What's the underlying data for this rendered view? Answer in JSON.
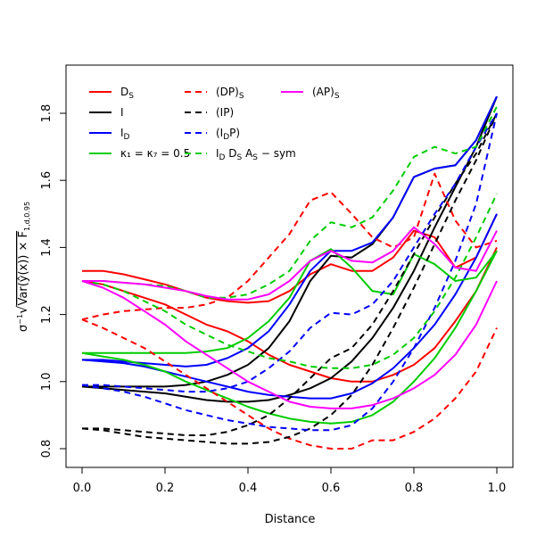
{
  "chart_data": {
    "type": "line",
    "xlabel": "Distance",
    "ylabel": "σ⁻¹√(Var(ŷ(x)) × F₁,d,0.95)",
    "xlim": [
      0.0,
      1.0
    ],
    "ylim": [
      0.8,
      1.85
    ],
    "xticks": [
      0.0,
      0.2,
      0.4,
      0.6,
      0.8,
      1.0
    ],
    "xtick_labels": [
      "0.0",
      "0.2",
      "0.4",
      "0.6",
      "0.8",
      "1.0"
    ],
    "yticks": [
      0.8,
      1.0,
      1.2,
      1.4,
      1.6,
      1.8
    ],
    "ytick_labels": [
      "0.8",
      "1.0",
      "1.2",
      "1.4",
      "1.6",
      "1.8"
    ],
    "grid": false,
    "legend_position": "top-left",
    "series": [
      {
        "legend": "D_S",
        "color": "#ff0000",
        "dash": "solid",
        "curves": [
          {
            "x": [
              0,
              0.05,
              0.1,
              0.15,
              0.2,
              0.25,
              0.3,
              0.35,
              0.4,
              0.45,
              0.5,
              0.55,
              0.6,
              0.65,
              0.7,
              0.75,
              0.8,
              0.85,
              0.9,
              0.95,
              1.0
            ],
            "y": [
              1.33,
              1.33,
              1.32,
              1.305,
              1.29,
              1.27,
              1.25,
              1.24,
              1.235,
              1.24,
              1.27,
              1.32,
              1.35,
              1.33,
              1.33,
              1.37,
              1.45,
              1.43,
              1.34,
              1.37,
              1.5
            ]
          },
          {
            "x": [
              0,
              0.05,
              0.1,
              0.15,
              0.2,
              0.25,
              0.3,
              0.35,
              0.4,
              0.45,
              0.5,
              0.55,
              0.6,
              0.65,
              0.7,
              0.75,
              0.8,
              0.85,
              0.9,
              0.95,
              1.0
            ],
            "y": [
              1.3,
              1.29,
              1.27,
              1.25,
              1.23,
              1.2,
              1.17,
              1.15,
              1.12,
              1.08,
              1.05,
              1.03,
              1.01,
              1.0,
              1.0,
              1.02,
              1.05,
              1.1,
              1.18,
              1.27,
              1.4
            ]
          }
        ]
      },
      {
        "legend": "I",
        "color": "#000000",
        "dash": "solid",
        "curves": [
          {
            "x": [
              0,
              0.05,
              0.1,
              0.15,
              0.2,
              0.25,
              0.3,
              0.35,
              0.4,
              0.45,
              0.5,
              0.55,
              0.6,
              0.65,
              0.7,
              0.75,
              0.8,
              0.85,
              0.9,
              0.95,
              1.0
            ],
            "y": [
              0.985,
              0.985,
              0.985,
              0.985,
              0.985,
              0.99,
              1.0,
              1.02,
              1.05,
              1.1,
              1.18,
              1.3,
              1.375,
              1.37,
              1.41,
              1.49,
              1.61,
              1.635,
              1.645,
              1.72,
              1.85
            ]
          },
          {
            "x": [
              0,
              0.05,
              0.1,
              0.15,
              0.2,
              0.25,
              0.3,
              0.35,
              0.4,
              0.45,
              0.5,
              0.55,
              0.6,
              0.65,
              0.7,
              0.75,
              0.8,
              0.85,
              0.9,
              0.95,
              1.0
            ],
            "y": [
              0.985,
              0.98,
              0.975,
              0.97,
              0.965,
              0.955,
              0.945,
              0.94,
              0.94,
              0.945,
              0.96,
              0.98,
              1.01,
              1.06,
              1.13,
              1.22,
              1.33,
              1.46,
              1.58,
              1.7,
              1.85
            ]
          }
        ]
      },
      {
        "legend": "I_D",
        "color": "#0000ff",
        "dash": "solid",
        "curves": [
          {
            "x": [
              0,
              0.05,
              0.1,
              0.15,
              0.2,
              0.25,
              0.3,
              0.35,
              0.4,
              0.45,
              0.5,
              0.55,
              0.6,
              0.65,
              0.7,
              0.75,
              0.8,
              0.85,
              0.9,
              0.95,
              1.0
            ],
            "y": [
              1.065,
              1.065,
              1.06,
              1.055,
              1.05,
              1.045,
              1.05,
              1.07,
              1.1,
              1.15,
              1.23,
              1.33,
              1.39,
              1.39,
              1.415,
              1.49,
              1.61,
              1.635,
              1.645,
              1.72,
              1.85
            ]
          },
          {
            "x": [
              0,
              0.05,
              0.1,
              0.15,
              0.2,
              0.25,
              0.3,
              0.35,
              0.4,
              0.45,
              0.5,
              0.55,
              0.6,
              0.65,
              0.7,
              0.75,
              0.8,
              0.85,
              0.9,
              0.95,
              1.0
            ],
            "y": [
              1.065,
              1.06,
              1.055,
              1.045,
              1.03,
              1.015,
              1.0,
              0.985,
              0.97,
              0.96,
              0.955,
              0.95,
              0.95,
              0.965,
              0.995,
              1.04,
              1.1,
              1.17,
              1.26,
              1.37,
              1.5
            ]
          }
        ]
      },
      {
        "legend": "κ₁ = κ₇ = 0.5",
        "color": "#00cc00",
        "dash": "solid",
        "curves": [
          {
            "x": [
              0,
              0.05,
              0.1,
              0.15,
              0.2,
              0.25,
              0.3,
              0.35,
              0.4,
              0.45,
              0.5,
              0.55,
              0.6,
              0.65,
              0.7,
              0.75,
              0.8,
              0.85,
              0.9,
              0.95,
              1.0
            ],
            "y": [
              1.085,
              1.085,
              1.085,
              1.085,
              1.085,
              1.085,
              1.09,
              1.1,
              1.13,
              1.18,
              1.25,
              1.36,
              1.395,
              1.34,
              1.27,
              1.26,
              1.38,
              1.35,
              1.3,
              1.31,
              1.39
            ]
          },
          {
            "x": [
              0,
              0.05,
              0.1,
              0.15,
              0.2,
              0.25,
              0.3,
              0.35,
              0.4,
              0.45,
              0.5,
              0.55,
              0.6,
              0.65,
              0.7,
              0.75,
              0.8,
              0.85,
              0.9,
              0.95,
              1.0
            ],
            "y": [
              1.085,
              1.075,
              1.065,
              1.05,
              1.03,
              1.0,
              0.975,
              0.95,
              0.925,
              0.905,
              0.89,
              0.88,
              0.875,
              0.88,
              0.9,
              0.94,
              1.0,
              1.07,
              1.16,
              1.27,
              1.39
            ]
          }
        ]
      },
      {
        "legend": "(DP)_S",
        "color": "#ff0000",
        "dash": "dashed",
        "curves": [
          {
            "x": [
              0,
              0.05,
              0.1,
              0.15,
              0.2,
              0.25,
              0.3,
              0.35,
              0.4,
              0.45,
              0.5,
              0.55,
              0.6,
              0.65,
              0.7,
              0.75,
              0.8,
              0.85,
              0.9,
              0.95,
              1.0
            ],
            "y": [
              1.185,
              1.2,
              1.21,
              1.215,
              1.22,
              1.22,
              1.23,
              1.25,
              1.3,
              1.37,
              1.44,
              1.54,
              1.565,
              1.5,
              1.43,
              1.4,
              1.43,
              1.62,
              1.48,
              1.4,
              1.42
            ]
          },
          {
            "x": [
              0,
              0.05,
              0.1,
              0.15,
              0.2,
              0.25,
              0.3,
              0.35,
              0.4,
              0.45,
              0.5,
              0.55,
              0.6,
              0.65,
              0.7,
              0.75,
              0.8,
              0.85,
              0.9,
              0.95,
              1.0
            ],
            "y": [
              1.185,
              1.16,
              1.13,
              1.1,
              1.06,
              1.02,
              0.98,
              0.94,
              0.9,
              0.86,
              0.83,
              0.81,
              0.8,
              0.8,
              0.825,
              0.825,
              0.85,
              0.89,
              0.95,
              1.03,
              1.16
            ]
          }
        ]
      },
      {
        "legend": "(IP)",
        "color": "#000000",
        "dash": "dashed",
        "curves": [
          {
            "x": [
              0,
              0.05,
              0.1,
              0.15,
              0.2,
              0.25,
              0.3,
              0.35,
              0.4,
              0.45,
              0.5,
              0.55,
              0.6,
              0.65,
              0.7,
              0.75,
              0.8,
              0.85,
              0.9,
              0.95,
              1.0
            ],
            "y": [
              0.86,
              0.86,
              0.855,
              0.85,
              0.845,
              0.84,
              0.84,
              0.85,
              0.87,
              0.9,
              0.95,
              1.01,
              1.07,
              1.1,
              1.17,
              1.27,
              1.38,
              1.49,
              1.59,
              1.68,
              1.8
            ]
          },
          {
            "x": [
              0,
              0.05,
              0.1,
              0.15,
              0.2,
              0.25,
              0.3,
              0.35,
              0.4,
              0.45,
              0.5,
              0.55,
              0.6,
              0.65,
              0.7,
              0.75,
              0.8,
              0.85,
              0.9,
              0.95,
              1.0
            ],
            "y": [
              0.86,
              0.855,
              0.845,
              0.835,
              0.83,
              0.825,
              0.82,
              0.815,
              0.815,
              0.82,
              0.835,
              0.86,
              0.9,
              0.96,
              1.05,
              1.16,
              1.28,
              1.41,
              1.54,
              1.66,
              1.8
            ]
          }
        ]
      },
      {
        "legend": "(I_D P)",
        "color": "#0000ff",
        "dash": "dashed",
        "curves": [
          {
            "x": [
              0,
              0.05,
              0.1,
              0.15,
              0.2,
              0.25,
              0.3,
              0.35,
              0.4,
              0.45,
              0.5,
              0.55,
              0.6,
              0.65,
              0.7,
              0.75,
              0.8,
              0.85,
              0.9,
              0.95,
              1.0
            ],
            "y": [
              0.99,
              0.99,
              0.985,
              0.98,
              0.975,
              0.97,
              0.97,
              0.98,
              1.0,
              1.04,
              1.09,
              1.16,
              1.205,
              1.2,
              1.23,
              1.3,
              1.4,
              1.5,
              1.59,
              1.7,
              1.8
            ]
          },
          {
            "x": [
              0,
              0.05,
              0.1,
              0.15,
              0.2,
              0.25,
              0.3,
              0.35,
              0.4,
              0.45,
              0.5,
              0.55,
              0.6,
              0.65,
              0.7,
              0.75,
              0.8,
              0.85,
              0.9,
              0.95,
              1.0
            ],
            "y": [
              0.99,
              0.98,
              0.97,
              0.955,
              0.935,
              0.915,
              0.9,
              0.885,
              0.875,
              0.865,
              0.86,
              0.855,
              0.855,
              0.87,
              0.92,
              1.0,
              1.1,
              1.22,
              1.36,
              1.53,
              1.8
            ]
          }
        ]
      },
      {
        "legend": "I_D D_S A_S − sym",
        "color": "#00cc00",
        "dash": "dashed",
        "curves": [
          {
            "x": [
              0,
              0.05,
              0.1,
              0.15,
              0.2,
              0.25,
              0.3,
              0.35,
              0.4,
              0.45,
              0.5,
              0.55,
              0.6,
              0.65,
              0.7,
              0.75,
              0.8,
              0.85,
              0.9,
              0.95,
              1.0
            ],
            "y": [
              1.3,
              1.3,
              1.295,
              1.29,
              1.285,
              1.27,
              1.25,
              1.25,
              1.26,
              1.29,
              1.33,
              1.42,
              1.475,
              1.46,
              1.49,
              1.57,
              1.67,
              1.7,
              1.68,
              1.7,
              1.82
            ]
          },
          {
            "x": [
              0,
              0.05,
              0.1,
              0.15,
              0.2,
              0.25,
              0.3,
              0.35,
              0.4,
              0.45,
              0.5,
              0.55,
              0.6,
              0.65,
              0.7,
              0.75,
              0.8,
              0.85,
              0.9,
              0.95,
              1.0
            ],
            "y": [
              1.3,
              1.29,
              1.27,
              1.24,
              1.21,
              1.17,
              1.14,
              1.11,
              1.09,
              1.07,
              1.06,
              1.045,
              1.04,
              1.04,
              1.05,
              1.08,
              1.13,
              1.21,
              1.31,
              1.43,
              1.56
            ]
          }
        ]
      },
      {
        "legend": "(AP)_S",
        "color": "#ff00ff",
        "dash": "solid",
        "curves": [
          {
            "x": [
              0,
              0.05,
              0.1,
              0.15,
              0.2,
              0.25,
              0.3,
              0.35,
              0.4,
              0.45,
              0.5,
              0.55,
              0.6,
              0.65,
              0.7,
              0.75,
              0.8,
              0.85,
              0.9,
              0.95,
              1.0
            ],
            "y": [
              1.3,
              1.3,
              1.295,
              1.29,
              1.28,
              1.27,
              1.255,
              1.245,
              1.245,
              1.26,
              1.3,
              1.36,
              1.39,
              1.36,
              1.355,
              1.39,
              1.46,
              1.41,
              1.34,
              1.33,
              1.45
            ]
          },
          {
            "x": [
              0,
              0.05,
              0.1,
              0.15,
              0.2,
              0.25,
              0.3,
              0.35,
              0.4,
              0.45,
              0.5,
              0.55,
              0.6,
              0.65,
              0.7,
              0.75,
              0.8,
              0.85,
              0.9,
              0.95,
              1.0
            ],
            "y": [
              1.3,
              1.28,
              1.25,
              1.21,
              1.17,
              1.12,
              1.08,
              1.04,
              1.0,
              0.97,
              0.94,
              0.925,
              0.92,
              0.92,
              0.93,
              0.95,
              0.98,
              1.02,
              1.08,
              1.17,
              1.3
            ]
          }
        ]
      }
    ]
  }
}
